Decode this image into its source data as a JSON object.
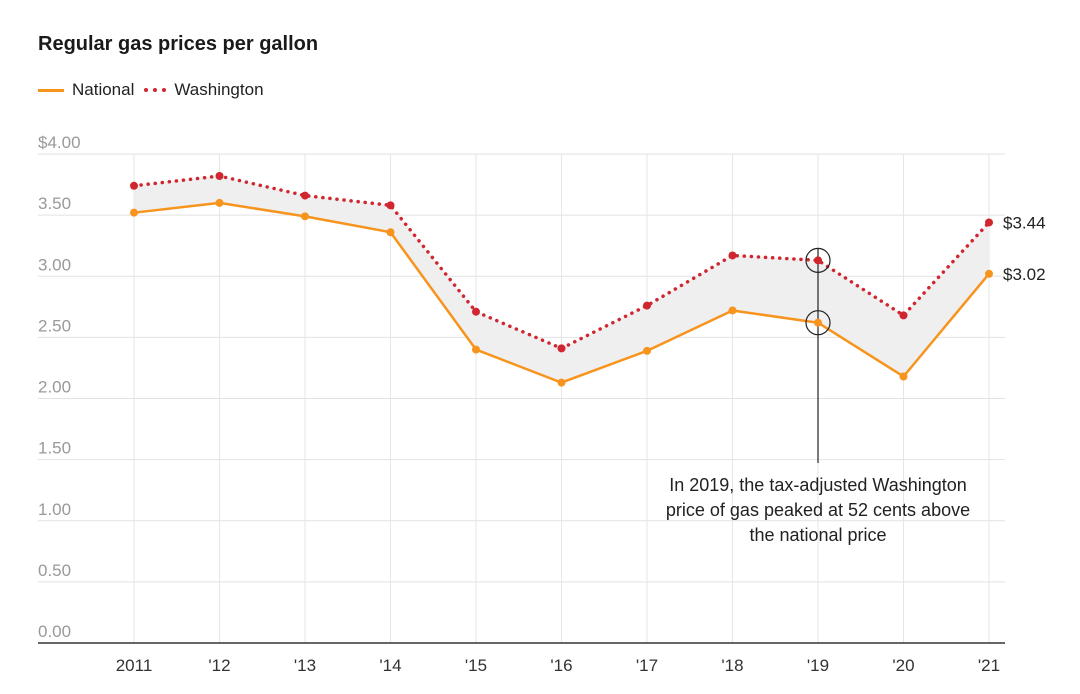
{
  "chart_data": {
    "type": "line",
    "title": "Regular gas prices per gallon",
    "categories": [
      "2011",
      "'12",
      "'13",
      "'14",
      "'15",
      "'16",
      "'17",
      "'18",
      "'19",
      "'20",
      "'21"
    ],
    "series": [
      {
        "name": "National",
        "color": "#f7941d",
        "style": "solid",
        "values": [
          3.52,
          3.6,
          3.49,
          3.36,
          2.4,
          2.13,
          2.39,
          2.72,
          2.62,
          2.18,
          3.02
        ]
      },
      {
        "name": "Washington",
        "color": "#d0262f",
        "style": "dotted",
        "values": [
          3.74,
          3.82,
          3.66,
          3.58,
          2.71,
          2.41,
          2.76,
          3.17,
          3.13,
          2.68,
          3.44
        ]
      }
    ],
    "ylim": [
      0,
      4
    ],
    "yticks": [
      "$4.00",
      "3.50",
      "3.00",
      "2.50",
      "2.00",
      "1.50",
      "1.00",
      "0.50",
      "0.00"
    ],
    "end_labels": {
      "National": "$3.02",
      "Washington": "$3.44"
    },
    "annotation": {
      "category": "'19",
      "lines": [
        "In 2019, the tax-adjusted Washington",
        "price of gas peaked at 52 cents above",
        "the national price"
      ]
    },
    "grid": true,
    "legend_position": "top-left",
    "gap_fill_color": "#efefef"
  }
}
